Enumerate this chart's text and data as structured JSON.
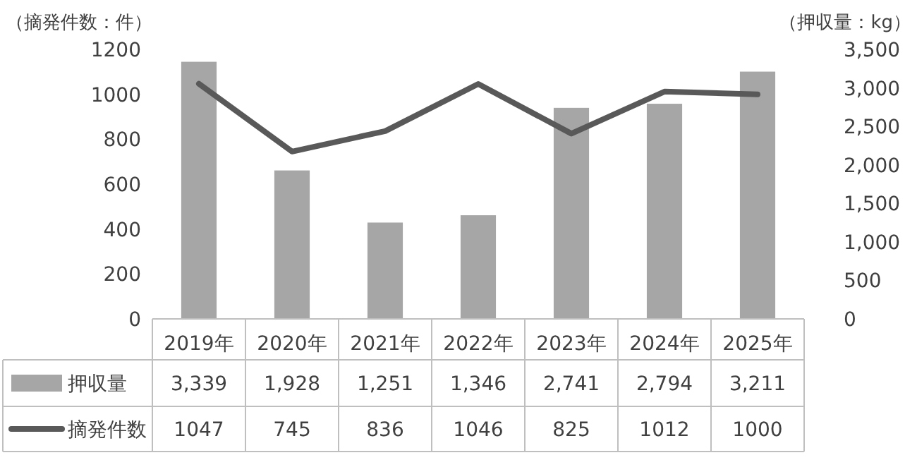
{
  "chart_data": {
    "type": "bar",
    "ylabel": "（摘発件数：件）",
    "y2label": "（押収量：kg）",
    "categories": [
      "2019年",
      "2020年",
      "2021年",
      "2022年",
      "2023年",
      "2024年",
      "2025年"
    ],
    "series": [
      {
        "name": "押収量",
        "axis": "y2",
        "color": "#a6a6a6",
        "values": [
          3339,
          1928,
          1251,
          1346,
          2741,
          2794,
          3211
        ],
        "value_labels": [
          "3,339",
          "1,928",
          "1,251",
          "1,346",
          "2,741",
          "2,794",
          "3,211"
        ]
      },
      {
        "name": "摘発件数",
        "type": "line",
        "axis": "y",
        "color": "#595959",
        "values": [
          1047,
          745,
          836,
          1046,
          825,
          1012,
          1000
        ],
        "value_labels": [
          "1047",
          "745",
          "836",
          "1046",
          "825",
          "1012",
          "1000"
        ]
      }
    ],
    "ylim": [
      0,
      1200
    ],
    "yticks": [
      0,
      200,
      400,
      600,
      800,
      1000,
      1200
    ],
    "y2lim": [
      0,
      3500
    ],
    "y2ticks": [
      0,
      500,
      {
        "value": 1000,
        "label": "1,000"
      },
      {
        "value": 1500,
        "label": "1,500"
      },
      {
        "value": 2000,
        "label": "2,000"
      },
      {
        "value": 2500,
        "label": "2,500"
      },
      {
        "value": 3000,
        "label": "3,000"
      },
      {
        "value": 3500,
        "label": "3,500"
      }
    ],
    "legend": "bottom",
    "grid": false
  }
}
